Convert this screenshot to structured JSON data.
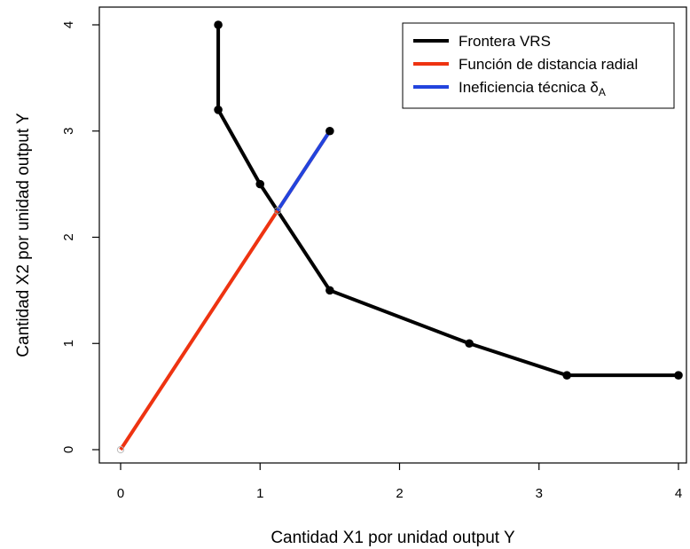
{
  "chart_data": {
    "type": "line",
    "xlabel": "Cantidad X1 por unidad output Y",
    "ylabel": "Cantidad X2 por unidad output Y",
    "xlim": [
      0,
      4
    ],
    "ylim": [
      0,
      4
    ],
    "x_ticks": [
      "0",
      "1",
      "2",
      "3",
      "4"
    ],
    "y_ticks": [
      "0",
      "1",
      "2",
      "3",
      "4"
    ],
    "grid": false,
    "legend_position": "top-right",
    "series": [
      {
        "name": "Frontera VRS",
        "color": "#000000",
        "points": [
          [
            0.7,
            4.0
          ],
          [
            0.7,
            3.2
          ],
          [
            1.0,
            2.5
          ],
          [
            1.5,
            1.5
          ],
          [
            2.5,
            1.0
          ],
          [
            3.2,
            0.7
          ],
          [
            4.0,
            0.7
          ]
        ],
        "markers": true
      },
      {
        "name": "Función de distancia radial",
        "color": "#ee3311",
        "points": [
          [
            0.0,
            0.0
          ],
          [
            1.5,
            3.0
          ]
        ],
        "markers": false
      },
      {
        "name": "Ineficiencia técnica δ",
        "name_subscript": "A",
        "color": "#2244dd",
        "points": [
          [
            1.125,
            2.25
          ],
          [
            1.5,
            3.0
          ]
        ],
        "markers": false
      }
    ],
    "extra_points": [
      {
        "x": 1.5,
        "y": 3.0,
        "style": "filled",
        "color": "#000000"
      },
      {
        "x": 1.125,
        "y": 2.25,
        "style": "open",
        "color": "#999999"
      },
      {
        "x": 0.0,
        "y": 0.0,
        "style": "open",
        "color": "#bbbbbb"
      }
    ]
  }
}
